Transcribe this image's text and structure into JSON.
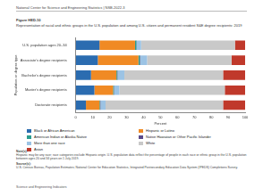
{
  "header": "National Center for Science and Engineering Statistics | NSB-2022-3",
  "figure": "Figure HED-10",
  "note_heading": "Note(s):",
  "note": "Hispanic may be any race; race categories exclude Hispanic origin. U.S. population data reflect the percentage of people in each race or ethnic group in the U.S. population between ages 20 and 34 years on 1 July 2019.",
  "source_heading": "Source(s):",
  "source": "U.S. Census Bureau, Population Estimates; National Center for Education Statistics, Integrated Postsecondary Education Data System (IPEDS) Completions Survey.",
  "footer": "Science and Engineering Indicators",
  "chart_data": {
    "type": "bar",
    "orientation": "horizontal",
    "stacked": true,
    "grid": false,
    "title": "Representation of racial and ethnic groups in the U.S. population and among U.S. citizen and permanent resident S&E degree recipients: 2019",
    "x_label": "Percent",
    "y_label": "Population or degree type",
    "categories": [
      "U.S. population ages 20–34",
      "Associate's degree recipients",
      "Bachelor's degree recipients",
      "Master's degree recipients",
      "Doctorate recipients"
    ],
    "xlim": [
      0,
      100
    ],
    "xticks": [
      0,
      10,
      20,
      30,
      40,
      50,
      60,
      70,
      80,
      90,
      100
    ],
    "series": [
      {
        "name": "Black or African American",
        "color": "#2b6cb0",
        "values": [
          14,
          13,
          9,
          11,
          6
        ]
      },
      {
        "name": "Hispanic or Latino",
        "color": "#f08a24",
        "values": [
          21,
          24,
          15,
          11,
          8
        ]
      },
      {
        "name": "American Indian or Alaska Native",
        "color": "#2a9d8f",
        "values": [
          0.8,
          0.8,
          0.5,
          0.5,
          0.4
        ]
      },
      {
        "name": "Native Hawaiian or Other Pacific Islander",
        "color": "#5a4a8a",
        "values": [
          0.2,
          0.3,
          0.2,
          0.2,
          0.2
        ]
      },
      {
        "name": "More than one race",
        "color": "#9cc3e4",
        "values": [
          2.6,
          4,
          4,
          3,
          3
        ]
      },
      {
        "name": "White",
        "color": "#c9c9c9",
        "values": [
          55.4,
          49.9,
          58.3,
          62.3,
          69.4
        ]
      },
      {
        "name": "Asian",
        "color": "#c0392b",
        "values": [
          6,
          8,
          13,
          12,
          13
        ]
      }
    ]
  }
}
